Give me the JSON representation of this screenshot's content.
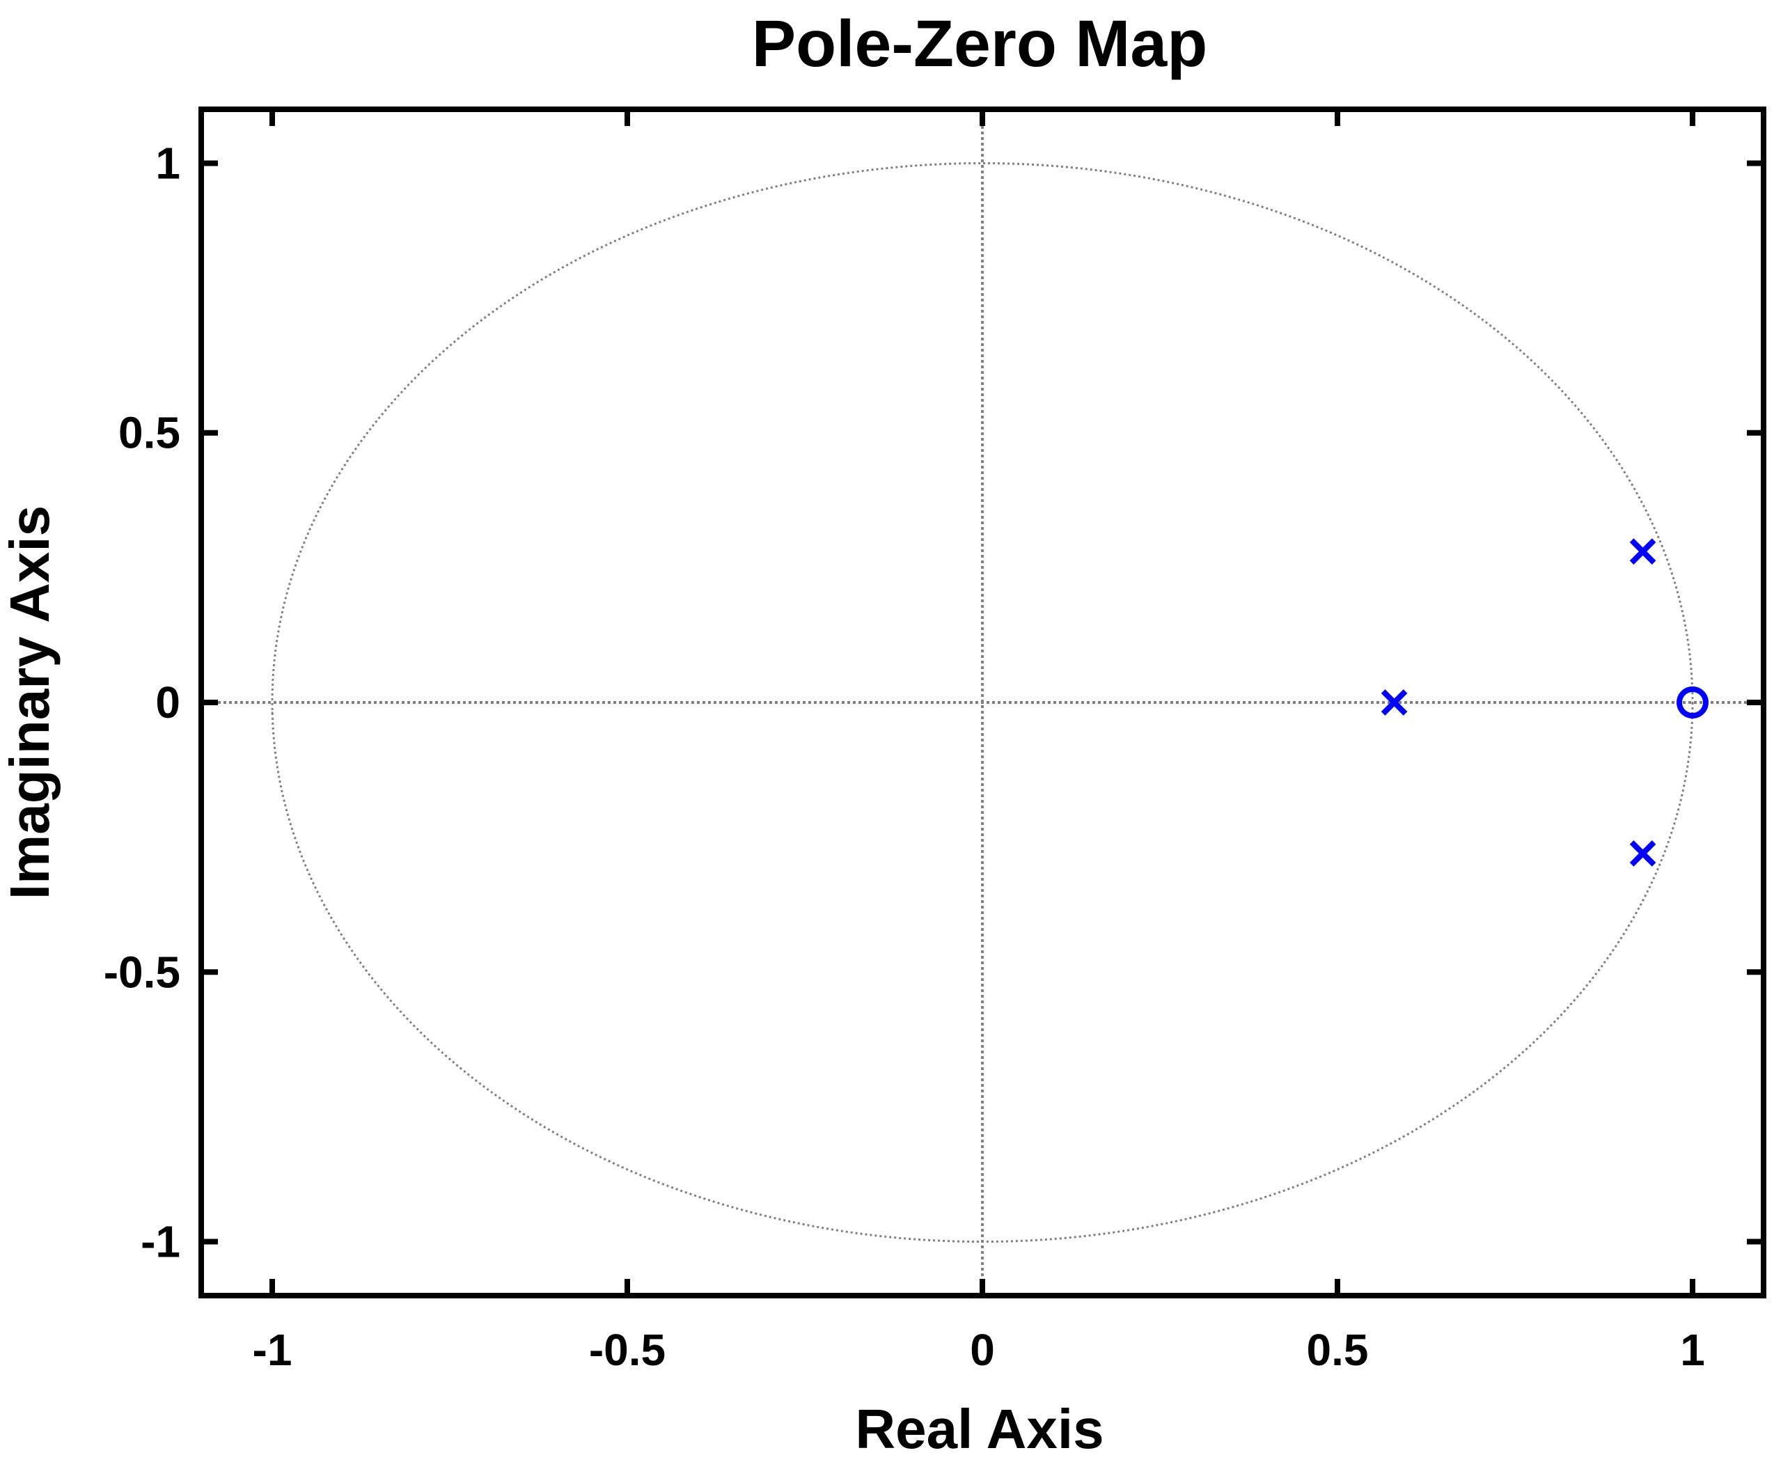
{
  "chart_data": {
    "type": "scatter",
    "title": "Pole-Zero Map",
    "xlabel": "Real Axis",
    "ylabel": "Imaginary Axis",
    "xlim": [
      -1.1,
      1.1
    ],
    "ylim": [
      -1.1,
      1.1
    ],
    "xticks": [
      -1,
      -0.5,
      0,
      0.5,
      1
    ],
    "xtick_labels": [
      "-1",
      "-0.5",
      "0",
      "0.5",
      "1"
    ],
    "yticks": [
      -1,
      -0.5,
      0,
      0.5,
      1
    ],
    "ytick_labels": [
      "-1",
      "-0.5",
      "0",
      "0.5",
      "1"
    ],
    "grid": "unit circle and axis lines (dotted)",
    "poles": [
      {
        "x": 0.58,
        "y": 0
      },
      {
        "x": 0.93,
        "y": 0.28
      },
      {
        "x": 0.93,
        "y": -0.28
      }
    ],
    "zeros": [
      {
        "x": 1.0,
        "y": 0
      }
    ],
    "marker_color": "#0000ff",
    "guide_color": "#7f7f7f"
  }
}
